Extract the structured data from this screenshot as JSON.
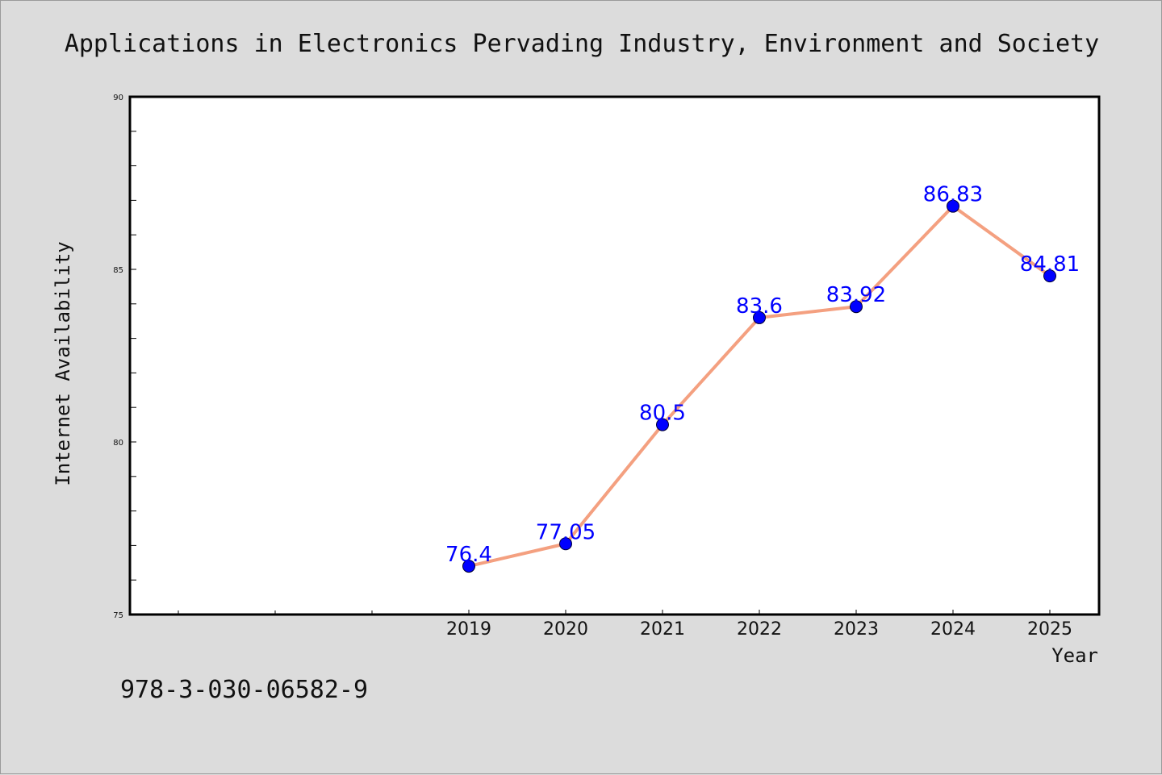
{
  "chart_data": {
    "type": "line",
    "title": "Applications in Electronics Pervading Industry, Environment and Society",
    "xlabel": "Year",
    "ylabel": "Internet Availability",
    "ylim": [
      75,
      90
    ],
    "yticks": [
      "75",
      "80",
      "85",
      "90"
    ],
    "categories": [
      "2019",
      "2020",
      "2021",
      "2022",
      "2023",
      "2024",
      "2025"
    ],
    "values": [
      76.4,
      77.05,
      80.5,
      83.6,
      83.92,
      86.83,
      84.81
    ],
    "value_labels": [
      "76.4",
      "77.05",
      "80.5",
      "83.6",
      "83.92",
      "86.83",
      "84.81"
    ],
    "line_color": "#f4a080",
    "marker_color": "#0000ff",
    "label_color": "#0000ff",
    "grid": false
  },
  "footer": {
    "isbn": "978-3-030-06582-9"
  }
}
